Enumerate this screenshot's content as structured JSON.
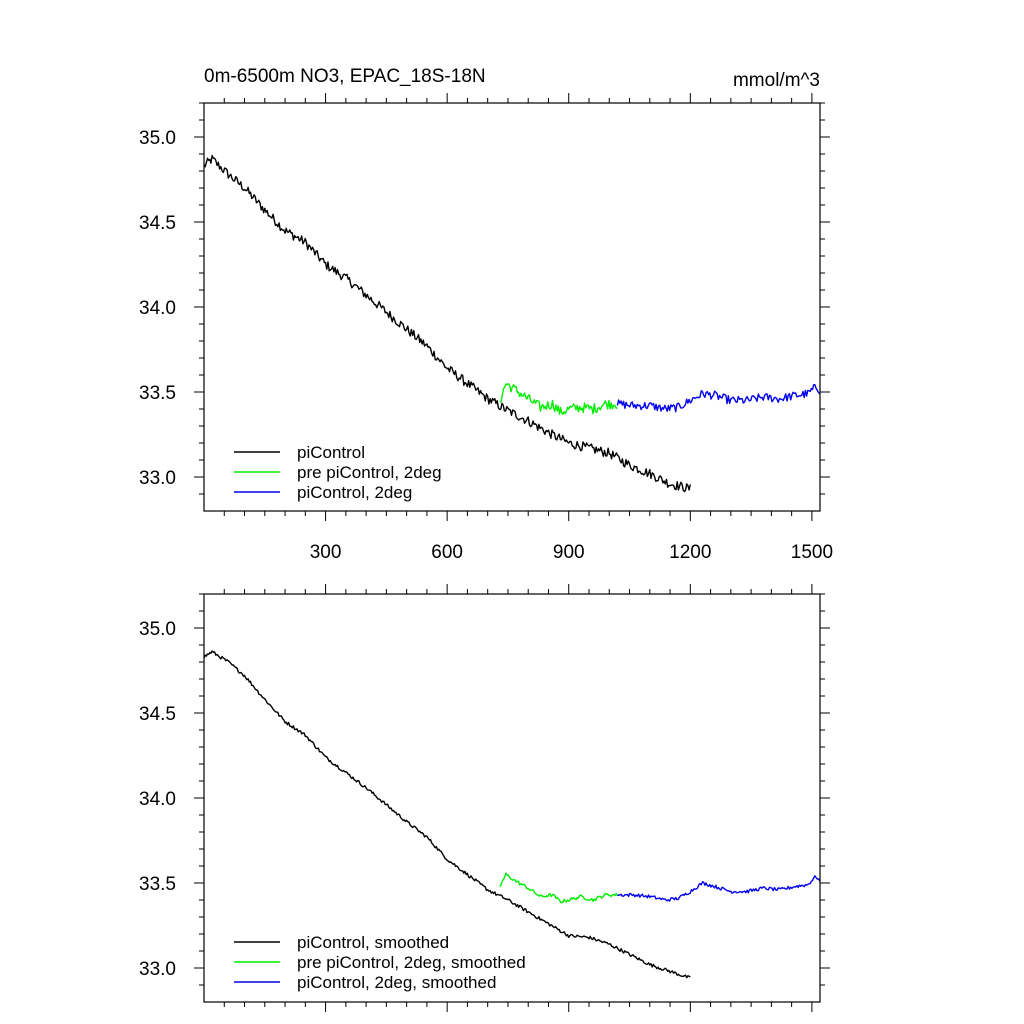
{
  "figure": {
    "title": "0m-6500m NO3, EPAC_18S-18N",
    "units": "mmol/m^3"
  },
  "chart_data": [
    {
      "type": "line",
      "panel": "top",
      "xlim": [
        0,
        1520
      ],
      "ylim": [
        32.8,
        35.2
      ],
      "x_major_ticks": [
        300,
        600,
        900,
        1200,
        1500
      ],
      "x_tick_labels": [
        "300",
        "600",
        "900",
        "1200",
        "1500"
      ],
      "y_major_ticks": [
        33.0,
        33.5,
        34.0,
        34.5,
        35.0
      ],
      "y_tick_labels": [
        "33.0",
        "33.5",
        "34.0",
        "34.5",
        "35.0"
      ],
      "legend_position": "bottom-left",
      "series": [
        {
          "name": "piControl",
          "color": "#000000",
          "noise": 0.028,
          "x": [
            0,
            20,
            60,
            100,
            150,
            200,
            250,
            300,
            350,
            400,
            450,
            500,
            550,
            600,
            650,
            700,
            750,
            800,
            850,
            900,
            950,
            1000,
            1050,
            1100,
            1150,
            1200
          ],
          "y": [
            34.83,
            34.87,
            34.78,
            34.7,
            34.57,
            34.45,
            34.38,
            34.25,
            34.17,
            34.07,
            33.97,
            33.87,
            33.77,
            33.64,
            33.55,
            33.46,
            33.39,
            33.33,
            33.26,
            33.2,
            33.17,
            33.14,
            33.07,
            33.02,
            32.96,
            32.93
          ]
        },
        {
          "name": "pre piControl, 2deg",
          "color": "#00ee00",
          "noise": 0.03,
          "x": [
            730,
            745,
            770,
            800,
            830,
            860,
            880,
            900,
            930,
            960,
            990,
            1020
          ],
          "y": [
            33.45,
            33.55,
            33.51,
            33.46,
            33.41,
            33.43,
            33.38,
            33.4,
            33.41,
            33.4,
            33.43,
            33.43
          ]
        },
        {
          "name": "piControl, 2deg",
          "color": "#0000ee",
          "noise": 0.025,
          "x": [
            1020,
            1060,
            1100,
            1140,
            1170,
            1200,
            1230,
            1260,
            1300,
            1340,
            1380,
            1420,
            1460,
            1490,
            1510,
            1520
          ],
          "y": [
            33.43,
            33.42,
            33.42,
            33.4,
            33.41,
            33.45,
            33.49,
            33.48,
            33.45,
            33.45,
            33.47,
            33.46,
            33.48,
            33.49,
            33.53,
            33.51
          ]
        }
      ]
    },
    {
      "type": "line",
      "panel": "bottom",
      "xlim": [
        0,
        1520
      ],
      "ylim": [
        32.8,
        35.2
      ],
      "x_major_ticks": [
        300,
        600,
        900,
        1200,
        1500
      ],
      "x_tick_labels": [],
      "y_major_ticks": [
        33.0,
        33.5,
        34.0,
        34.5,
        35.0
      ],
      "y_tick_labels": [
        "33.0",
        "33.5",
        "34.0",
        "34.5",
        "35.0"
      ],
      "legend_position": "bottom-left",
      "series": [
        {
          "name": "piControl, smoothed",
          "color": "#000000",
          "noise": 0.01,
          "x": [
            0,
            20,
            60,
            100,
            150,
            200,
            250,
            300,
            350,
            400,
            450,
            500,
            550,
            600,
            650,
            700,
            750,
            800,
            850,
            900,
            950,
            1000,
            1050,
            1100,
            1150,
            1200
          ],
          "y": [
            34.83,
            34.86,
            34.8,
            34.72,
            34.58,
            34.45,
            34.37,
            34.24,
            34.15,
            34.06,
            33.96,
            33.86,
            33.77,
            33.64,
            33.55,
            33.46,
            33.4,
            33.33,
            33.26,
            33.19,
            33.18,
            33.14,
            33.08,
            33.02,
            32.98,
            32.94
          ]
        },
        {
          "name": "pre piControl, 2deg, smoothed",
          "color": "#00ee00",
          "noise": 0.01,
          "x": [
            730,
            745,
            770,
            800,
            830,
            860,
            880,
            900,
            930,
            960,
            990,
            1020
          ],
          "y": [
            33.48,
            33.55,
            33.51,
            33.47,
            33.42,
            33.43,
            33.39,
            33.4,
            33.42,
            33.4,
            33.43,
            33.43
          ]
        },
        {
          "name": "piControl, 2deg, smoothed",
          "color": "#0000ee",
          "noise": 0.01,
          "x": [
            1020,
            1060,
            1100,
            1140,
            1170,
            1200,
            1230,
            1260,
            1300,
            1340,
            1380,
            1420,
            1460,
            1490,
            1510,
            1520
          ],
          "y": [
            33.43,
            33.43,
            33.42,
            33.4,
            33.41,
            33.45,
            33.5,
            33.48,
            33.45,
            33.45,
            33.47,
            33.46,
            33.48,
            33.49,
            33.54,
            33.51
          ]
        }
      ]
    }
  ]
}
